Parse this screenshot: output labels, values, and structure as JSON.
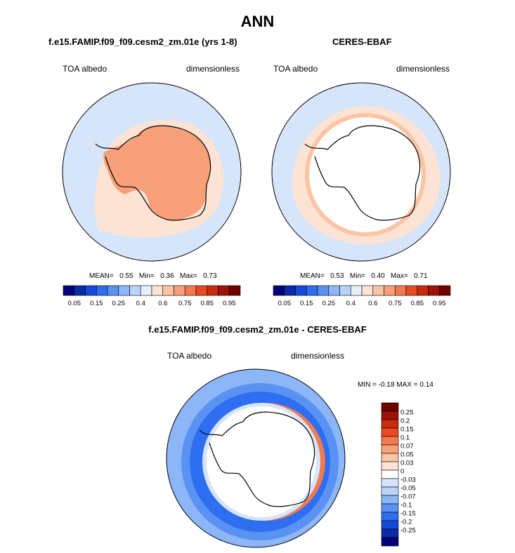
{
  "page": {
    "title": "ANN"
  },
  "panels": [
    {
      "id": "model",
      "title": "f.e15.FAMIP.f09_f09.cesm2_zm.01e (yrs 1-8)",
      "variable": "TOA albedo",
      "units": "dimensionless",
      "stats": {
        "mean_label": "MEAN=",
        "mean": "0.55",
        "min_label": "Min=",
        "min": "0.36",
        "max_label": "Max=",
        "max": "0.73"
      }
    },
    {
      "id": "obs",
      "title": "CERES-EBAF",
      "variable": "TOA albedo",
      "units": "dimensionless",
      "stats": {
        "mean_label": "MEAN=",
        "mean": "0.53",
        "min_label": "Min=",
        "min": "0.40",
        "max_label": "Max=",
        "max": "0.71"
      }
    },
    {
      "id": "diff",
      "title": "f.e15.FAMIP.f09_f09.cesm2_zm.01e - CERES-EBAF",
      "variable": "TOA albedo",
      "units": "dimensionless",
      "stats_text": "MIN = -0.18 MAX = 0.14"
    }
  ],
  "colorbar_top": {
    "colors": [
      "#03027c",
      "#0b2aa8",
      "#1649d9",
      "#2e6ef0",
      "#5a92f4",
      "#8cb6f7",
      "#b9d3f9",
      "#e6f0fb",
      "#fde3d3",
      "#fbc4a4",
      "#f7a07a",
      "#f27a52",
      "#e94a22",
      "#c92b0c",
      "#9f1305",
      "#710000"
    ],
    "tick_labels": [
      "0.05",
      "0.15",
      "0.25",
      "0.4",
      "0.6",
      "0.75",
      "0.85",
      "0.95"
    ]
  },
  "colorbar_diff": {
    "colors": [
      "#710000",
      "#9f1305",
      "#c92b0c",
      "#e94a22",
      "#f27a52",
      "#f7a07a",
      "#fbc4a4",
      "#fde3d3",
      "#ffffff",
      "#d6e5fa",
      "#b9d3f9",
      "#8cb6f7",
      "#5a92f4",
      "#2e6ef0",
      "#1649d9",
      "#0b2aa8",
      "#03027c"
    ],
    "tick_labels": [
      "0.25",
      "0.2",
      "0.15",
      "0.1",
      "0.07",
      "0.05",
      "0.03",
      "0",
      "-0.03",
      "-0.05",
      "-0.07",
      "-0.1",
      "-0.15",
      "-0.2",
      "-0.25"
    ]
  },
  "map_colors": {
    "ocean_low": "#d6e5fa",
    "band_light": "#fde3d3",
    "band_mid": "#fbc4a4",
    "land_high": "#f7a07a",
    "no_data": "#ffffff",
    "diff_blue": "#2e6ef0",
    "diff_blue_light": "#8cb6f7",
    "diff_blue_mid": "#5a92f4",
    "diff_red": "#f27a52"
  }
}
